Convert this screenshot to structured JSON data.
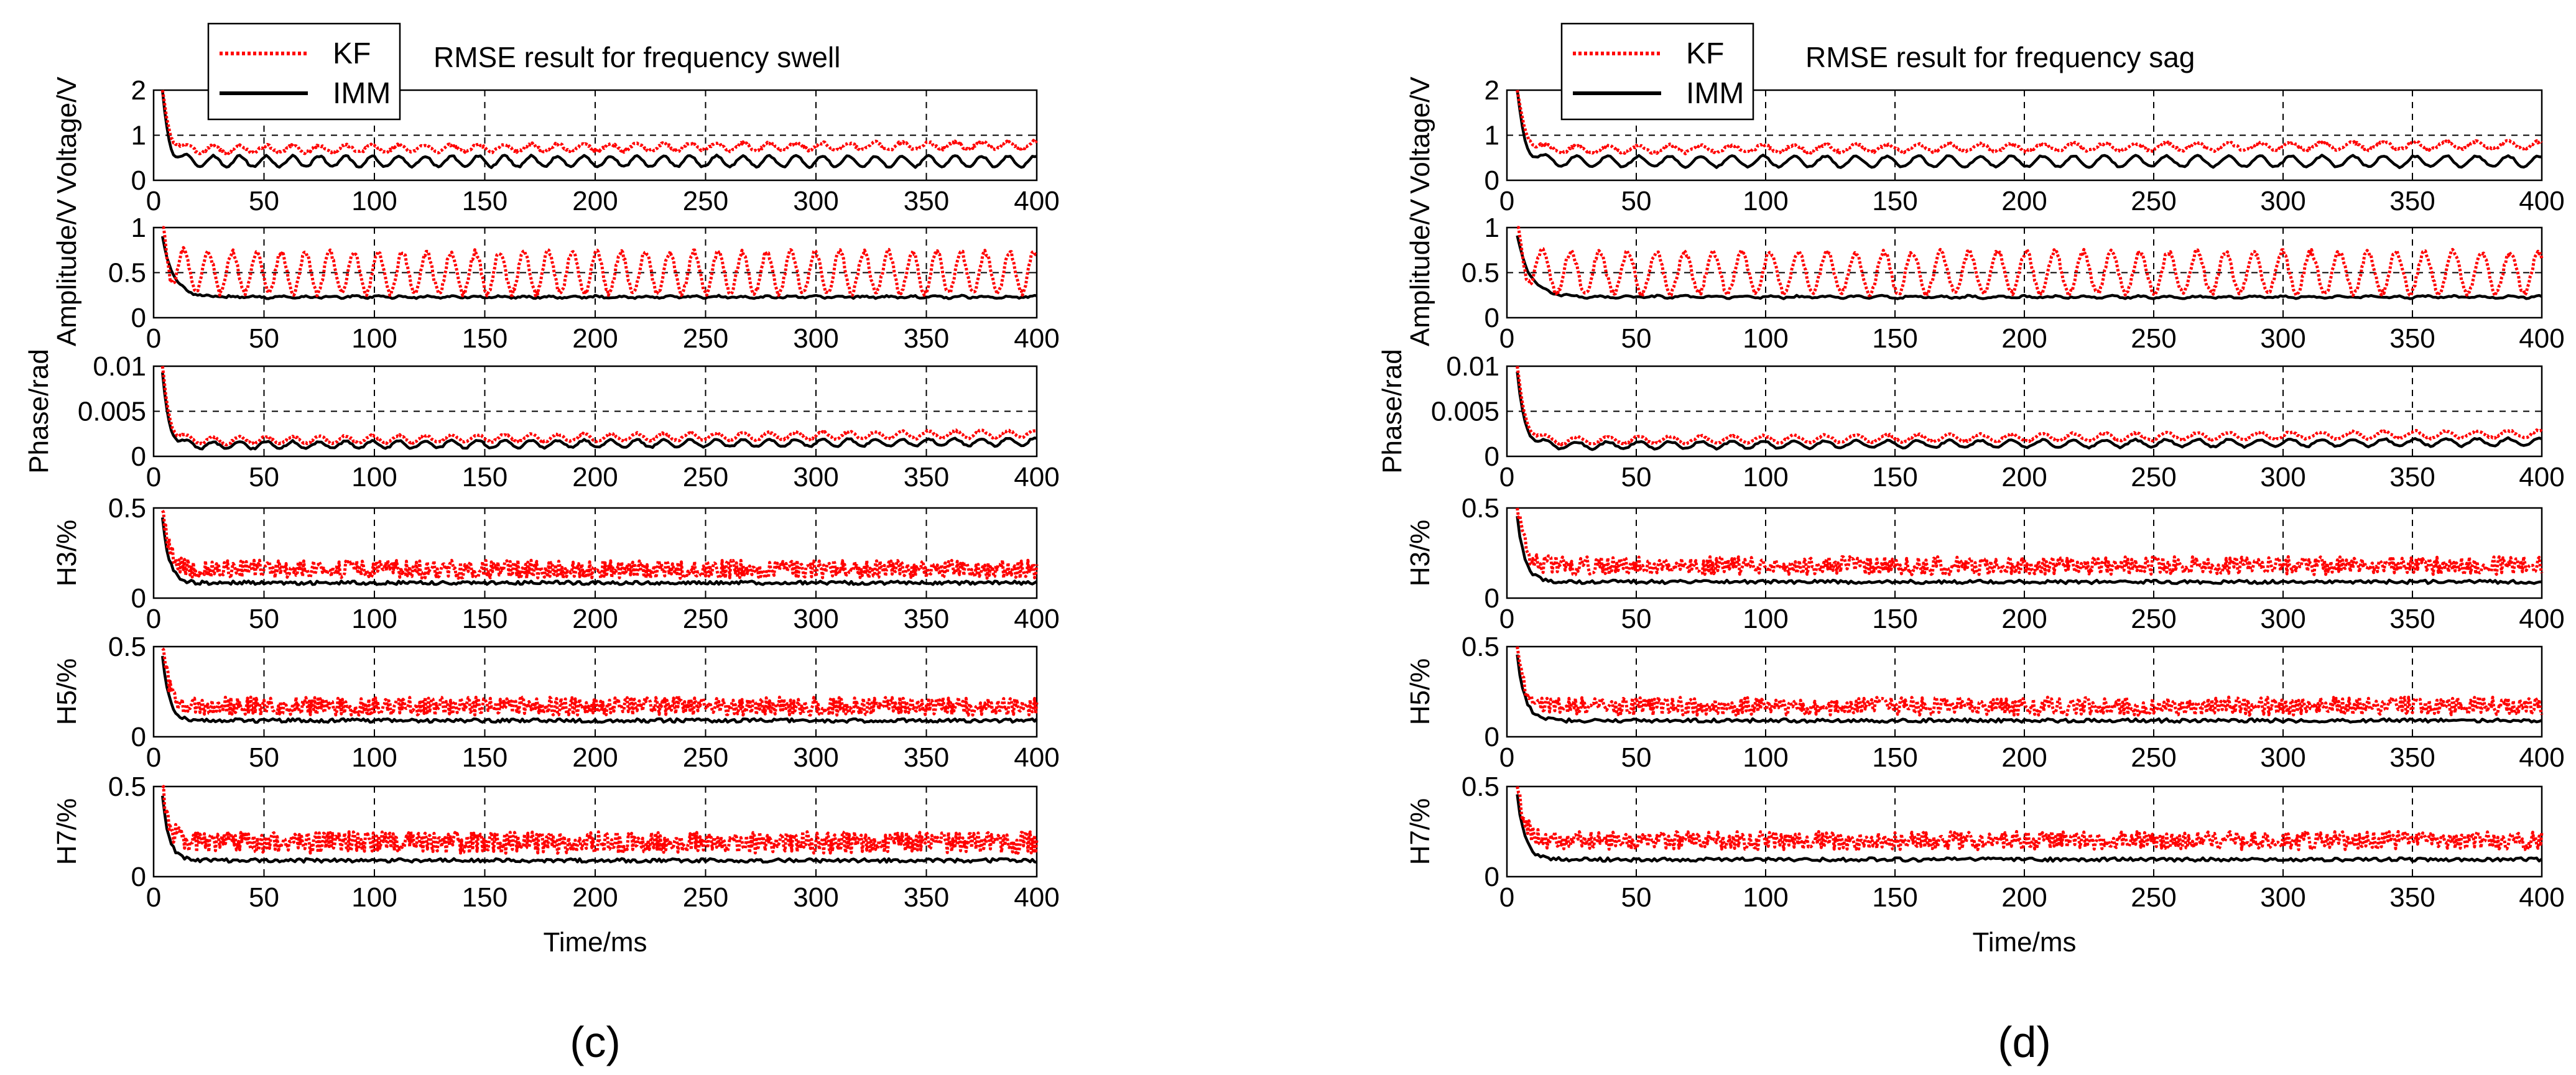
{
  "colors": {
    "kf": "#ff0000",
    "imm": "#000000",
    "axis": "#000000",
    "grid": "#000000",
    "background": "#ffffff"
  },
  "chart_data": [
    {
      "type": "line",
      "panel_label": "(c)",
      "title": "RMSE result for frequency swell",
      "legend": {
        "position": "top-left",
        "entries": [
          "KF",
          "IMM"
        ]
      },
      "xlabel": "Time/ms",
      "xlim": [
        0,
        400
      ],
      "xticks": [
        "0",
        "50",
        "100",
        "150",
        "200",
        "250",
        "300",
        "350",
        "400"
      ],
      "subplots": [
        {
          "ylabel": "Voltage/V",
          "ylim": [
            0,
            2
          ],
          "yticks": [
            "0",
            "1",
            "2"
          ],
          "yvals": [
            0,
            1,
            2
          ],
          "grid": "dashed",
          "series": [
            {
              "name": "KF",
              "line": "dotted",
              "start": 2.0,
              "base": 0.68,
              "osc_amp": 0.08,
              "osc_period": 12,
              "noise": 0.03,
              "trend": 0.1,
              "decay_ms": 3
            },
            {
              "name": "IMM",
              "line": "solid",
              "start": 1.9,
              "base": 0.42,
              "osc_amp": 0.12,
              "osc_period": 12,
              "noise": 0.02,
              "trend": 0.0,
              "decay_ms": 3
            }
          ]
        },
        {
          "ylabel": "Amplitude/V",
          "ylim": [
            0,
            1
          ],
          "yticks": [
            "0",
            "0.5",
            "1"
          ],
          "yvals": [
            0,
            0.5,
            1
          ],
          "grid": "dashed",
          "series": [
            {
              "name": "KF",
              "line": "dotted",
              "start": 1.0,
              "base": 0.5,
              "osc_amp": 0.23,
              "osc_period": 11,
              "noise": 0.03,
              "trend": 0.0,
              "decay_ms": 3
            },
            {
              "name": "IMM",
              "line": "solid",
              "start": 0.9,
              "base": 0.23,
              "osc_amp": 0.01,
              "osc_period": 11,
              "noise": 0.01,
              "trend": 0.0,
              "decay_ms": 5
            }
          ]
        },
        {
          "ylabel": "Phase/rad",
          "ylim": [
            0,
            0.01
          ],
          "yticks": [
            "0",
            "0.005",
            "0.01"
          ],
          "yvals": [
            0,
            0.005,
            0.01
          ],
          "grid": "dashed",
          "series": [
            {
              "name": "KF",
              "line": "dotted",
              "start": 0.01,
              "base": 0.0017,
              "osc_amp": 0.0004,
              "osc_period": 12,
              "noise": 0.0001,
              "trend": 0.0008,
              "decay_ms": 3
            },
            {
              "name": "IMM",
              "line": "solid",
              "start": 0.009,
              "base": 0.0012,
              "osc_amp": 0.0004,
              "osc_period": 12,
              "noise": 0.0001,
              "trend": 0.0004,
              "decay_ms": 3
            }
          ]
        },
        {
          "ylabel": "H3/%",
          "ylim": [
            0,
            0.5
          ],
          "yticks": [
            "0",
            "0.5"
          ],
          "yvals": [
            0,
            0.5
          ],
          "grid": "dashed",
          "series": [
            {
              "name": "KF",
              "line": "dotted",
              "start": 0.5,
              "base": 0.16,
              "osc_amp": 0.0,
              "osc_period": 10,
              "noise": 0.05,
              "trend": 0.0,
              "decay_ms": 3
            },
            {
              "name": "IMM",
              "line": "solid",
              "start": 0.45,
              "base": 0.085,
              "osc_amp": 0.0,
              "osc_period": 10,
              "noise": 0.01,
              "trend": 0.0,
              "decay_ms": 3
            }
          ]
        },
        {
          "ylabel": "H5/%",
          "ylim": [
            0,
            0.5
          ],
          "yticks": [
            "0",
            "0.5"
          ],
          "yvals": [
            0,
            0.5
          ],
          "grid": "dashed",
          "series": [
            {
              "name": "KF",
              "line": "dotted",
              "start": 0.5,
              "base": 0.17,
              "osc_amp": 0.0,
              "osc_period": 10,
              "noise": 0.05,
              "trend": 0.0,
              "decay_ms": 3
            },
            {
              "name": "IMM",
              "line": "solid",
              "start": 0.45,
              "base": 0.09,
              "osc_amp": 0.0,
              "osc_period": 10,
              "noise": 0.01,
              "trend": 0.0,
              "decay_ms": 3
            }
          ]
        },
        {
          "ylabel": "H7/%",
          "ylim": [
            0,
            0.5
          ],
          "yticks": [
            "0",
            "0.5"
          ],
          "yvals": [
            0,
            0.5
          ],
          "grid": "dashed",
          "series": [
            {
              "name": "KF",
              "line": "dotted",
              "start": 0.5,
              "base": 0.19,
              "osc_amp": 0.0,
              "osc_period": 10,
              "noise": 0.06,
              "trend": 0.0,
              "decay_ms": 3
            },
            {
              "name": "IMM",
              "line": "solid",
              "start": 0.45,
              "base": 0.09,
              "osc_amp": 0.0,
              "osc_period": 10,
              "noise": 0.01,
              "trend": 0.0,
              "decay_ms": 3
            }
          ]
        }
      ]
    },
    {
      "type": "line",
      "panel_label": "(d)",
      "title": "RMSE result for frequency sag",
      "legend": {
        "position": "top-left",
        "entries": [
          "KF",
          "IMM"
        ]
      },
      "xlabel": "Time/ms",
      "xlim": [
        0,
        400
      ],
      "xticks": [
        "0",
        "50",
        "100",
        "150",
        "200",
        "250",
        "300",
        "350",
        "400"
      ],
      "subplots": [
        {
          "ylabel": "Voltage/V",
          "ylim": [
            0,
            2
          ],
          "yticks": [
            "0",
            "1",
            "2"
          ],
          "yvals": [
            0,
            1,
            2
          ],
          "grid": "dashed",
          "series": [
            {
              "name": "KF",
              "line": "dotted",
              "start": 2.0,
              "base": 0.68,
              "osc_amp": 0.08,
              "osc_period": 12,
              "noise": 0.03,
              "trend": 0.1,
              "decay_ms": 3
            },
            {
              "name": "IMM",
              "line": "solid",
              "start": 1.9,
              "base": 0.42,
              "osc_amp": 0.12,
              "osc_period": 12,
              "noise": 0.02,
              "trend": 0.0,
              "decay_ms": 3
            }
          ]
        },
        {
          "ylabel": "Amplitude/V",
          "ylim": [
            0,
            1
          ],
          "yticks": [
            "0",
            "0.5",
            "1"
          ],
          "yvals": [
            0,
            0.5,
            1
          ],
          "grid": "dashed",
          "series": [
            {
              "name": "KF",
              "line": "dotted",
              "start": 1.0,
              "base": 0.5,
              "osc_amp": 0.23,
              "osc_period": 11,
              "noise": 0.03,
              "trend": 0.0,
              "decay_ms": 3
            },
            {
              "name": "IMM",
              "line": "solid",
              "start": 0.9,
              "base": 0.23,
              "osc_amp": 0.01,
              "osc_period": 11,
              "noise": 0.01,
              "trend": 0.0,
              "decay_ms": 5
            }
          ]
        },
        {
          "ylabel": "Phase/rad",
          "ylim": [
            0,
            0.01
          ],
          "yticks": [
            "0",
            "0.005",
            "0.01"
          ],
          "yvals": [
            0,
            0.005,
            0.01
          ],
          "grid": "dashed",
          "series": [
            {
              "name": "KF",
              "line": "dotted",
              "start": 0.01,
              "base": 0.0017,
              "osc_amp": 0.0004,
              "osc_period": 12,
              "noise": 0.0001,
              "trend": 0.0008,
              "decay_ms": 3
            },
            {
              "name": "IMM",
              "line": "solid",
              "start": 0.009,
              "base": 0.0012,
              "osc_amp": 0.0004,
              "osc_period": 12,
              "noise": 0.0001,
              "trend": 0.0004,
              "decay_ms": 3
            }
          ]
        },
        {
          "ylabel": "H3/%",
          "ylim": [
            0,
            0.5
          ],
          "yticks": [
            "0",
            "0.5"
          ],
          "yvals": [
            0,
            0.5
          ],
          "grid": "dashed",
          "series": [
            {
              "name": "KF",
              "line": "dotted",
              "start": 0.5,
              "base": 0.18,
              "osc_amp": 0.0,
              "osc_period": 10,
              "noise": 0.05,
              "trend": 0.0,
              "decay_ms": 3
            },
            {
              "name": "IMM",
              "line": "solid",
              "start": 0.45,
              "base": 0.09,
              "osc_amp": 0.0,
              "osc_period": 10,
              "noise": 0.01,
              "trend": 0.0,
              "decay_ms": 3
            }
          ]
        },
        {
          "ylabel": "H5/%",
          "ylim": [
            0,
            0.5
          ],
          "yticks": [
            "0",
            "0.5"
          ],
          "yvals": [
            0,
            0.5
          ],
          "grid": "dashed",
          "series": [
            {
              "name": "KF",
              "line": "dotted",
              "start": 0.5,
              "base": 0.17,
              "osc_amp": 0.0,
              "osc_period": 10,
              "noise": 0.05,
              "trend": 0.0,
              "decay_ms": 3
            },
            {
              "name": "IMM",
              "line": "solid",
              "start": 0.45,
              "base": 0.09,
              "osc_amp": 0.0,
              "osc_period": 10,
              "noise": 0.01,
              "trend": 0.0,
              "decay_ms": 3
            }
          ]
        },
        {
          "ylabel": "H7/%",
          "ylim": [
            0,
            0.5
          ],
          "yticks": [
            "0",
            "0.5"
          ],
          "yvals": [
            0,
            0.5
          ],
          "grid": "dashed",
          "series": [
            {
              "name": "KF",
              "line": "dotted",
              "start": 0.5,
              "base": 0.2,
              "osc_amp": 0.0,
              "osc_period": 10,
              "noise": 0.05,
              "trend": 0.0,
              "decay_ms": 3
            },
            {
              "name": "IMM",
              "line": "solid",
              "start": 0.45,
              "base": 0.095,
              "osc_amp": 0.0,
              "osc_period": 10,
              "noise": 0.01,
              "trend": 0.0,
              "decay_ms": 3
            }
          ]
        }
      ]
    }
  ]
}
